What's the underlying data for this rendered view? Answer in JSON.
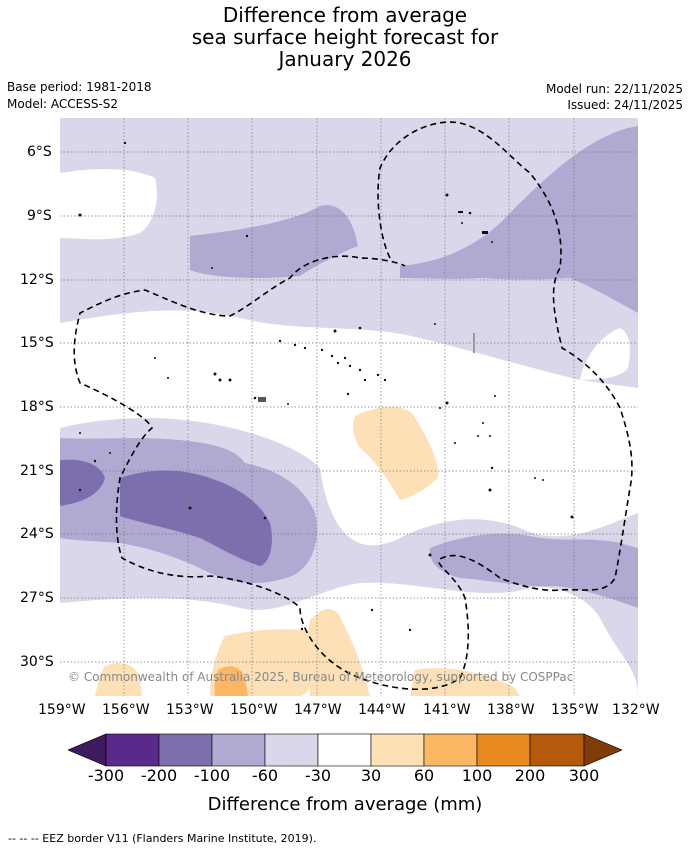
{
  "title": {
    "line1": "Difference from average",
    "line2": "sea surface height forecast for",
    "line3": "January 2026"
  },
  "meta": {
    "base_period": "Base period: 1981-2018",
    "model": "Model: ACCESS-S2",
    "model_run": "Model run: 22/11/2025",
    "issued": "Issued: 24/11/2025"
  },
  "map": {
    "copyright": "© Commonwealth of Australia 2025, Bureau of Meteorology, supported by COSPPac",
    "lat_labels": [
      "6°S",
      "9°S",
      "12°S",
      "15°S",
      "18°S",
      "21°S",
      "24°S",
      "27°S",
      "30°S"
    ],
    "lon_labels": [
      "159°W",
      "156°W",
      "153°W",
      "150°W",
      "147°W",
      "144°W",
      "141°W",
      "138°W",
      "135°W",
      "132°W"
    ],
    "colors": {
      "p300": "#3f1a5e",
      "p200": "#5a2a8a",
      "p100": "#7d6fae",
      "p60": "#b0a9d2",
      "p30": "#d9d8ea",
      "zero": "#ffffff",
      "o30": "#fde0b6",
      "o60": "#fbb763",
      "o100": "#e88a1f",
      "o200": "#b45a0a",
      "o300": "#7f3b08",
      "eez": "#000000"
    }
  },
  "colorbar": {
    "labels": [
      "-300",
      "-200",
      "-100",
      "-60",
      "-30",
      "30",
      "60",
      "100",
      "200",
      "300"
    ],
    "title": "Difference from average (mm)"
  },
  "footer": {
    "eez_legend": "--  --  -- EEZ border V11 (Flanders Marine Institute, 2019)."
  }
}
